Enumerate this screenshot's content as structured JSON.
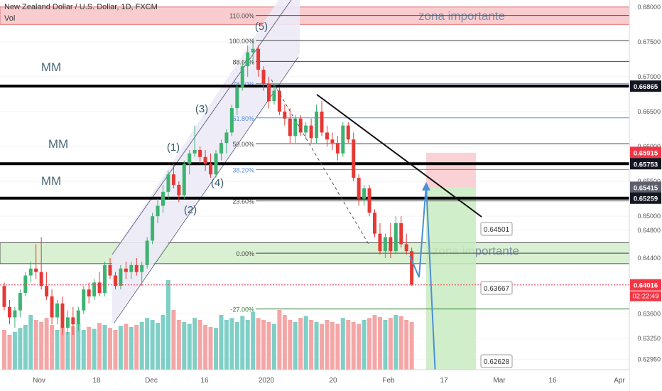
{
  "header": {
    "symbol_title": "New Zealand Dollar / U.S. Dollar, 1D, FXCM",
    "volume_label": "Vol"
  },
  "colors": {
    "up": "#26a69a",
    "down": "#ef5350",
    "up_body": "#3cb371",
    "down_body": "#e53935",
    "vol_up": "#7fcfc6",
    "vol_down": "#f4a6a6",
    "zone_red": "#f9cdd0",
    "zone_green": "#d9f0d3",
    "fib_line": "#444444",
    "fib_blue": "#5b8fd8",
    "channel_fill": "#eceaf6",
    "arrow_blue": "#4a90d9",
    "trendline": "#111111",
    "price_tag_red": "#f23645",
    "price_tag_black": "#131722",
    "price_tag_gray": "#5d606b"
  },
  "chart_data": {
    "type": "candlestick",
    "symbol": "NZDUSD",
    "timeframe": "1D",
    "ylim": [
      0.628,
      0.681
    ],
    "y_ticks": [
      "0.68000",
      "0.67500",
      "0.67000",
      "0.66500",
      "0.66000",
      "0.65500",
      "0.65000",
      "0.64800",
      "0.64400",
      "0.64000",
      "0.63600",
      "0.63250",
      "0.62950"
    ],
    "y_tick_values": [
      0.68,
      0.675,
      0.67,
      0.665,
      0.66,
      0.655,
      0.65,
      0.648,
      0.644,
      0.64,
      0.636,
      0.6325,
      0.6295
    ],
    "x_ticks": [
      "Nov",
      "18",
      "Dec",
      "16",
      "2020",
      "20",
      "Feb",
      "17",
      "Mar",
      "16",
      "Apr"
    ],
    "candles": [
      {
        "o": 0.64,
        "h": 0.6405,
        "l": 0.6365,
        "c": 0.637
      },
      {
        "o": 0.637,
        "h": 0.638,
        "l": 0.6345,
        "c": 0.6355
      },
      {
        "o": 0.6355,
        "h": 0.637,
        "l": 0.634,
        "c": 0.6365
      },
      {
        "o": 0.6365,
        "h": 0.6395,
        "l": 0.6355,
        "c": 0.639
      },
      {
        "o": 0.639,
        "h": 0.642,
        "l": 0.6385,
        "c": 0.6415
      },
      {
        "o": 0.6415,
        "h": 0.6435,
        "l": 0.6405,
        "c": 0.6425
      },
      {
        "o": 0.6425,
        "h": 0.646,
        "l": 0.641,
        "c": 0.642
      },
      {
        "o": 0.642,
        "h": 0.647,
        "l": 0.6395,
        "c": 0.64
      },
      {
        "o": 0.64,
        "h": 0.642,
        "l": 0.638,
        "c": 0.6385
      },
      {
        "o": 0.6385,
        "h": 0.6395,
        "l": 0.6345,
        "c": 0.6355
      },
      {
        "o": 0.6355,
        "h": 0.638,
        "l": 0.6345,
        "c": 0.6375
      },
      {
        "o": 0.6375,
        "h": 0.6385,
        "l": 0.633,
        "c": 0.634
      },
      {
        "o": 0.634,
        "h": 0.6365,
        "l": 0.633,
        "c": 0.6355
      },
      {
        "o": 0.6355,
        "h": 0.637,
        "l": 0.633,
        "c": 0.6345
      },
      {
        "o": 0.6345,
        "h": 0.637,
        "l": 0.6335,
        "c": 0.6365
      },
      {
        "o": 0.6365,
        "h": 0.64,
        "l": 0.636,
        "c": 0.6395
      },
      {
        "o": 0.6395,
        "h": 0.6405,
        "l": 0.6375,
        "c": 0.6385
      },
      {
        "o": 0.6385,
        "h": 0.641,
        "l": 0.638,
        "c": 0.6405
      },
      {
        "o": 0.6405,
        "h": 0.642,
        "l": 0.6385,
        "c": 0.639
      },
      {
        "o": 0.639,
        "h": 0.6435,
        "l": 0.6385,
        "c": 0.643
      },
      {
        "o": 0.643,
        "h": 0.644,
        "l": 0.641,
        "c": 0.6415
      },
      {
        "o": 0.6415,
        "h": 0.642,
        "l": 0.6395,
        "c": 0.64
      },
      {
        "o": 0.64,
        "h": 0.643,
        "l": 0.6395,
        "c": 0.6425
      },
      {
        "o": 0.6425,
        "h": 0.6435,
        "l": 0.641,
        "c": 0.642
      },
      {
        "o": 0.642,
        "h": 0.6435,
        "l": 0.641,
        "c": 0.643
      },
      {
        "o": 0.643,
        "h": 0.644,
        "l": 0.6415,
        "c": 0.642
      },
      {
        "o": 0.642,
        "h": 0.6435,
        "l": 0.64,
        "c": 0.643
      },
      {
        "o": 0.643,
        "h": 0.647,
        "l": 0.6425,
        "c": 0.6465
      },
      {
        "o": 0.6465,
        "h": 0.6505,
        "l": 0.646,
        "c": 0.65
      },
      {
        "o": 0.65,
        "h": 0.6525,
        "l": 0.649,
        "c": 0.6515
      },
      {
        "o": 0.6515,
        "h": 0.6545,
        "l": 0.6505,
        "c": 0.6535
      },
      {
        "o": 0.6535,
        "h": 0.6565,
        "l": 0.6525,
        "c": 0.656
      },
      {
        "o": 0.656,
        "h": 0.6575,
        "l": 0.654,
        "c": 0.6545
      },
      {
        "o": 0.6545,
        "h": 0.655,
        "l": 0.652,
        "c": 0.653
      },
      {
        "o": 0.653,
        "h": 0.658,
        "l": 0.6525,
        "c": 0.6575
      },
      {
        "o": 0.6575,
        "h": 0.6595,
        "l": 0.656,
        "c": 0.659
      },
      {
        "o": 0.659,
        "h": 0.663,
        "l": 0.6585,
        "c": 0.6595
      },
      {
        "o": 0.6595,
        "h": 0.66,
        "l": 0.6575,
        "c": 0.6585
      },
      {
        "o": 0.6585,
        "h": 0.6595,
        "l": 0.6565,
        "c": 0.6575
      },
      {
        "o": 0.6575,
        "h": 0.659,
        "l": 0.6555,
        "c": 0.656
      },
      {
        "o": 0.656,
        "h": 0.6595,
        "l": 0.6555,
        "c": 0.659
      },
      {
        "o": 0.659,
        "h": 0.661,
        "l": 0.658,
        "c": 0.6605
      },
      {
        "o": 0.6605,
        "h": 0.6625,
        "l": 0.659,
        "c": 0.662
      },
      {
        "o": 0.662,
        "h": 0.666,
        "l": 0.6615,
        "c": 0.6655
      },
      {
        "o": 0.6655,
        "h": 0.669,
        "l": 0.6645,
        "c": 0.6685
      },
      {
        "o": 0.6685,
        "h": 0.672,
        "l": 0.668,
        "c": 0.6715
      },
      {
        "o": 0.6715,
        "h": 0.6745,
        "l": 0.67,
        "c": 0.6735
      },
      {
        "o": 0.6735,
        "h": 0.6755,
        "l": 0.672,
        "c": 0.674
      },
      {
        "o": 0.674,
        "h": 0.6745,
        "l": 0.67,
        "c": 0.671
      },
      {
        "o": 0.671,
        "h": 0.6715,
        "l": 0.668,
        "c": 0.669
      },
      {
        "o": 0.669,
        "h": 0.67,
        "l": 0.6655,
        "c": 0.6665
      },
      {
        "o": 0.6665,
        "h": 0.669,
        "l": 0.666,
        "c": 0.668
      },
      {
        "o": 0.668,
        "h": 0.6685,
        "l": 0.6645,
        "c": 0.665
      },
      {
        "o": 0.665,
        "h": 0.666,
        "l": 0.663,
        "c": 0.664
      },
      {
        "o": 0.664,
        "h": 0.6655,
        "l": 0.6605,
        "c": 0.6615
      },
      {
        "o": 0.6615,
        "h": 0.6645,
        "l": 0.6605,
        "c": 0.664
      },
      {
        "o": 0.664,
        "h": 0.6645,
        "l": 0.6615,
        "c": 0.662
      },
      {
        "o": 0.662,
        "h": 0.6635,
        "l": 0.661,
        "c": 0.663
      },
      {
        "o": 0.663,
        "h": 0.664,
        "l": 0.6605,
        "c": 0.6612
      },
      {
        "o": 0.6612,
        "h": 0.666,
        "l": 0.6605,
        "c": 0.665
      },
      {
        "o": 0.665,
        "h": 0.6665,
        "l": 0.6615,
        "c": 0.662
      },
      {
        "o": 0.662,
        "h": 0.663,
        "l": 0.66,
        "c": 0.661
      },
      {
        "o": 0.661,
        "h": 0.662,
        "l": 0.6595,
        "c": 0.6605
      },
      {
        "o": 0.6605,
        "h": 0.6615,
        "l": 0.658,
        "c": 0.659
      },
      {
        "o": 0.659,
        "h": 0.6635,
        "l": 0.6585,
        "c": 0.663
      },
      {
        "o": 0.663,
        "h": 0.6635,
        "l": 0.6605,
        "c": 0.661
      },
      {
        "o": 0.661,
        "h": 0.662,
        "l": 0.655,
        "c": 0.6555
      },
      {
        "o": 0.6555,
        "h": 0.656,
        "l": 0.6515,
        "c": 0.6525
      },
      {
        "o": 0.6525,
        "h": 0.6545,
        "l": 0.6515,
        "c": 0.654
      },
      {
        "o": 0.654,
        "h": 0.6545,
        "l": 0.65,
        "c": 0.6505
      },
      {
        "o": 0.6505,
        "h": 0.651,
        "l": 0.647,
        "c": 0.6475
      },
      {
        "o": 0.6475,
        "h": 0.649,
        "l": 0.6445,
        "c": 0.645
      },
      {
        "o": 0.645,
        "h": 0.6475,
        "l": 0.644,
        "c": 0.647
      },
      {
        "o": 0.647,
        "h": 0.649,
        "l": 0.644,
        "c": 0.645
      },
      {
        "o": 0.645,
        "h": 0.65,
        "l": 0.6445,
        "c": 0.649
      },
      {
        "o": 0.649,
        "h": 0.65,
        "l": 0.6455,
        "c": 0.646
      },
      {
        "o": 0.646,
        "h": 0.6475,
        "l": 0.6445,
        "c": 0.645
      },
      {
        "o": 0.645,
        "h": 0.6455,
        "l": 0.64,
        "c": 0.6402
      }
    ],
    "volumes": [
      0.4,
      0.35,
      0.38,
      0.42,
      0.45,
      0.55,
      0.5,
      0.48,
      0.52,
      0.45,
      0.4,
      0.42,
      0.38,
      0.44,
      0.46,
      0.4,
      0.43,
      0.41,
      0.47,
      0.45,
      0.42,
      0.4,
      0.44,
      0.46,
      0.43,
      0.45,
      0.48,
      0.52,
      0.5,
      0.47,
      0.55,
      0.9,
      0.6,
      0.5,
      0.48,
      0.46,
      0.52,
      0.5,
      0.45,
      0.43,
      0.42,
      0.55,
      0.5,
      0.52,
      0.48,
      0.54,
      0.5,
      0.58,
      0.52,
      0.5,
      0.48,
      0.46,
      0.6,
      0.55,
      0.5,
      0.48,
      0.52,
      0.54,
      0.5,
      0.48,
      0.46,
      0.5,
      0.48,
      0.46,
      0.52,
      0.5,
      0.48,
      0.46,
      0.5,
      0.52,
      0.55,
      0.53,
      0.5,
      0.52,
      0.55,
      0.54,
      0.5,
      0.48
    ],
    "horizontal_levels": [
      {
        "price": 0.66865,
        "label": "0.66865",
        "style": "thick"
      },
      {
        "price": 0.65753,
        "label": "0.65753",
        "style": "thick"
      },
      {
        "price": 0.65259,
        "label": "0.65259",
        "style": "thick"
      }
    ],
    "price_tags": [
      {
        "price": 0.66865,
        "label": "0.66865",
        "color": "black"
      },
      {
        "price": 0.65915,
        "label": "0.65915",
        "color": "red"
      },
      {
        "price": 0.65753,
        "label": "0.65753",
        "color": "black"
      },
      {
        "price": 0.65415,
        "label": "0.65415",
        "color": "gray"
      },
      {
        "price": 0.65259,
        "label": "0.65259",
        "color": "black"
      },
      {
        "price": 0.64016,
        "label": "0.64016",
        "color": "red"
      }
    ],
    "countdown": "02:22:49",
    "fib_levels": [
      {
        "ratio": "110.00%",
        "price": 0.6788
      },
      {
        "ratio": "100.00%",
        "price": 0.6752
      },
      {
        "ratio": "88.60%",
        "price": 0.6722
      },
      {
        "ratio": "78.60%",
        "price": 0.669
      },
      {
        "ratio": "61.80%",
        "price": 0.6641
      },
      {
        "ratio": "50.00%",
        "price": 0.6604
      },
      {
        "ratio": "38.20%",
        "price": 0.6567
      },
      {
        "ratio": "23.60%",
        "price": 0.6522
      },
      {
        "ratio": "0.00%",
        "price": 0.6447
      },
      {
        "ratio": "-27.00%",
        "price": 0.6367
      }
    ],
    "zones": [
      {
        "label": "zona importante",
        "top": 0.68,
        "bottom": 0.6775
      },
      {
        "label": "zona importante",
        "top": 0.6462,
        "bottom": 0.6432
      }
    ],
    "annotations": [
      "MM",
      "MM",
      "MM",
      "(1)",
      "(2)",
      "(3)",
      "(4)",
      "(5)"
    ],
    "callouts": [
      "0.64501",
      "0.63667",
      "0.62628"
    ],
    "position": {
      "entry": 0.6541,
      "stop": 0.6591,
      "target": 0.6263
    }
  }
}
